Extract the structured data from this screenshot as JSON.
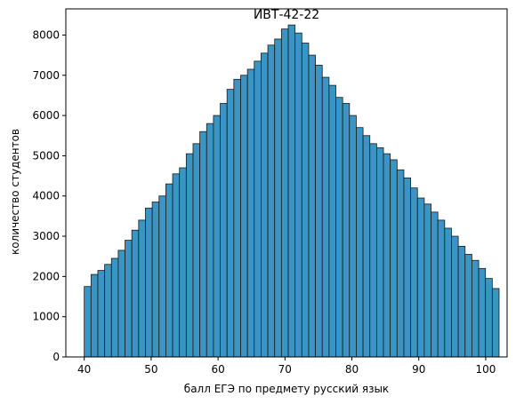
{
  "chart_data": {
    "type": "bar",
    "title": "ИВТ-42-22",
    "xlabel": "балл ЕГЭ по предмету русский язык",
    "ylabel": "количество студентов",
    "xlim": [
      37.25,
      103.2
    ],
    "ylim": [
      0,
      8650
    ],
    "xticks": [
      40,
      50,
      60,
      70,
      80,
      90,
      100
    ],
    "yticks": [
      0,
      1000,
      2000,
      3000,
      4000,
      5000,
      6000,
      7000,
      8000
    ],
    "bin_start": 40,
    "bin_width": 1.0164,
    "bar_color": "#3a95c5",
    "edge_color": "#1a1a1a",
    "grid": false,
    "values": [
      1750,
      2050,
      2150,
      2300,
      2450,
      2650,
      2900,
      3150,
      3400,
      3700,
      3850,
      4000,
      4300,
      4550,
      4700,
      5050,
      5300,
      5600,
      5800,
      6000,
      6300,
      6650,
      6900,
      7000,
      7150,
      7350,
      7550,
      7750,
      7900,
      8150,
      8250,
      8050,
      7800,
      7500,
      7250,
      6950,
      6750,
      6450,
      6300,
      6000,
      5700,
      5500,
      5300,
      5200,
      5050,
      4900,
      4650,
      4450,
      4200,
      3950,
      3800,
      3600,
      3400,
      3200,
      3000,
      2750,
      2550,
      2400,
      2200,
      1950,
      1700
    ]
  }
}
